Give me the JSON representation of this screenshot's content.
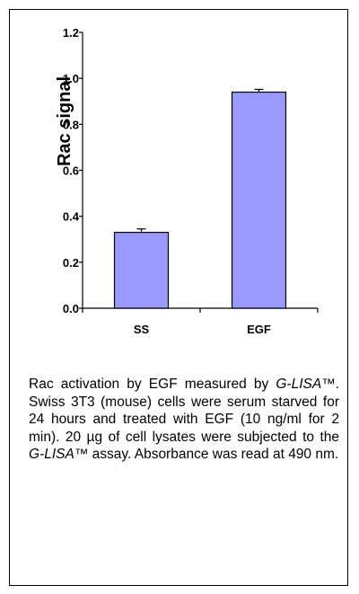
{
  "chart_data": {
    "type": "bar",
    "categories": [
      "SS",
      "EGF"
    ],
    "values": [
      0.33,
      0.94
    ],
    "errors": [
      0.015,
      0.012
    ],
    "xlabel": "",
    "ylabel": "Rac signal",
    "ylim": [
      0,
      1.2
    ],
    "yticks": [
      "0.0",
      "0.2",
      "0.4",
      "0.6",
      "0.8",
      "1.0",
      "1.2"
    ],
    "bar_color": "#9999ff",
    "grid": false
  },
  "caption": {
    "part1": "Rac activation by EGF measured by ",
    "italic1": "G-LISA™",
    "part2": ".  Swiss 3T3 (mouse) cells were serum starved for 24 hours and treated with EGF (10 ng/ml for 2 min). 20 µg of cell lysates were subjected to the ",
    "italic2": "G-LISA™",
    "part3": " assay. Absorbance was read at 490 nm."
  }
}
